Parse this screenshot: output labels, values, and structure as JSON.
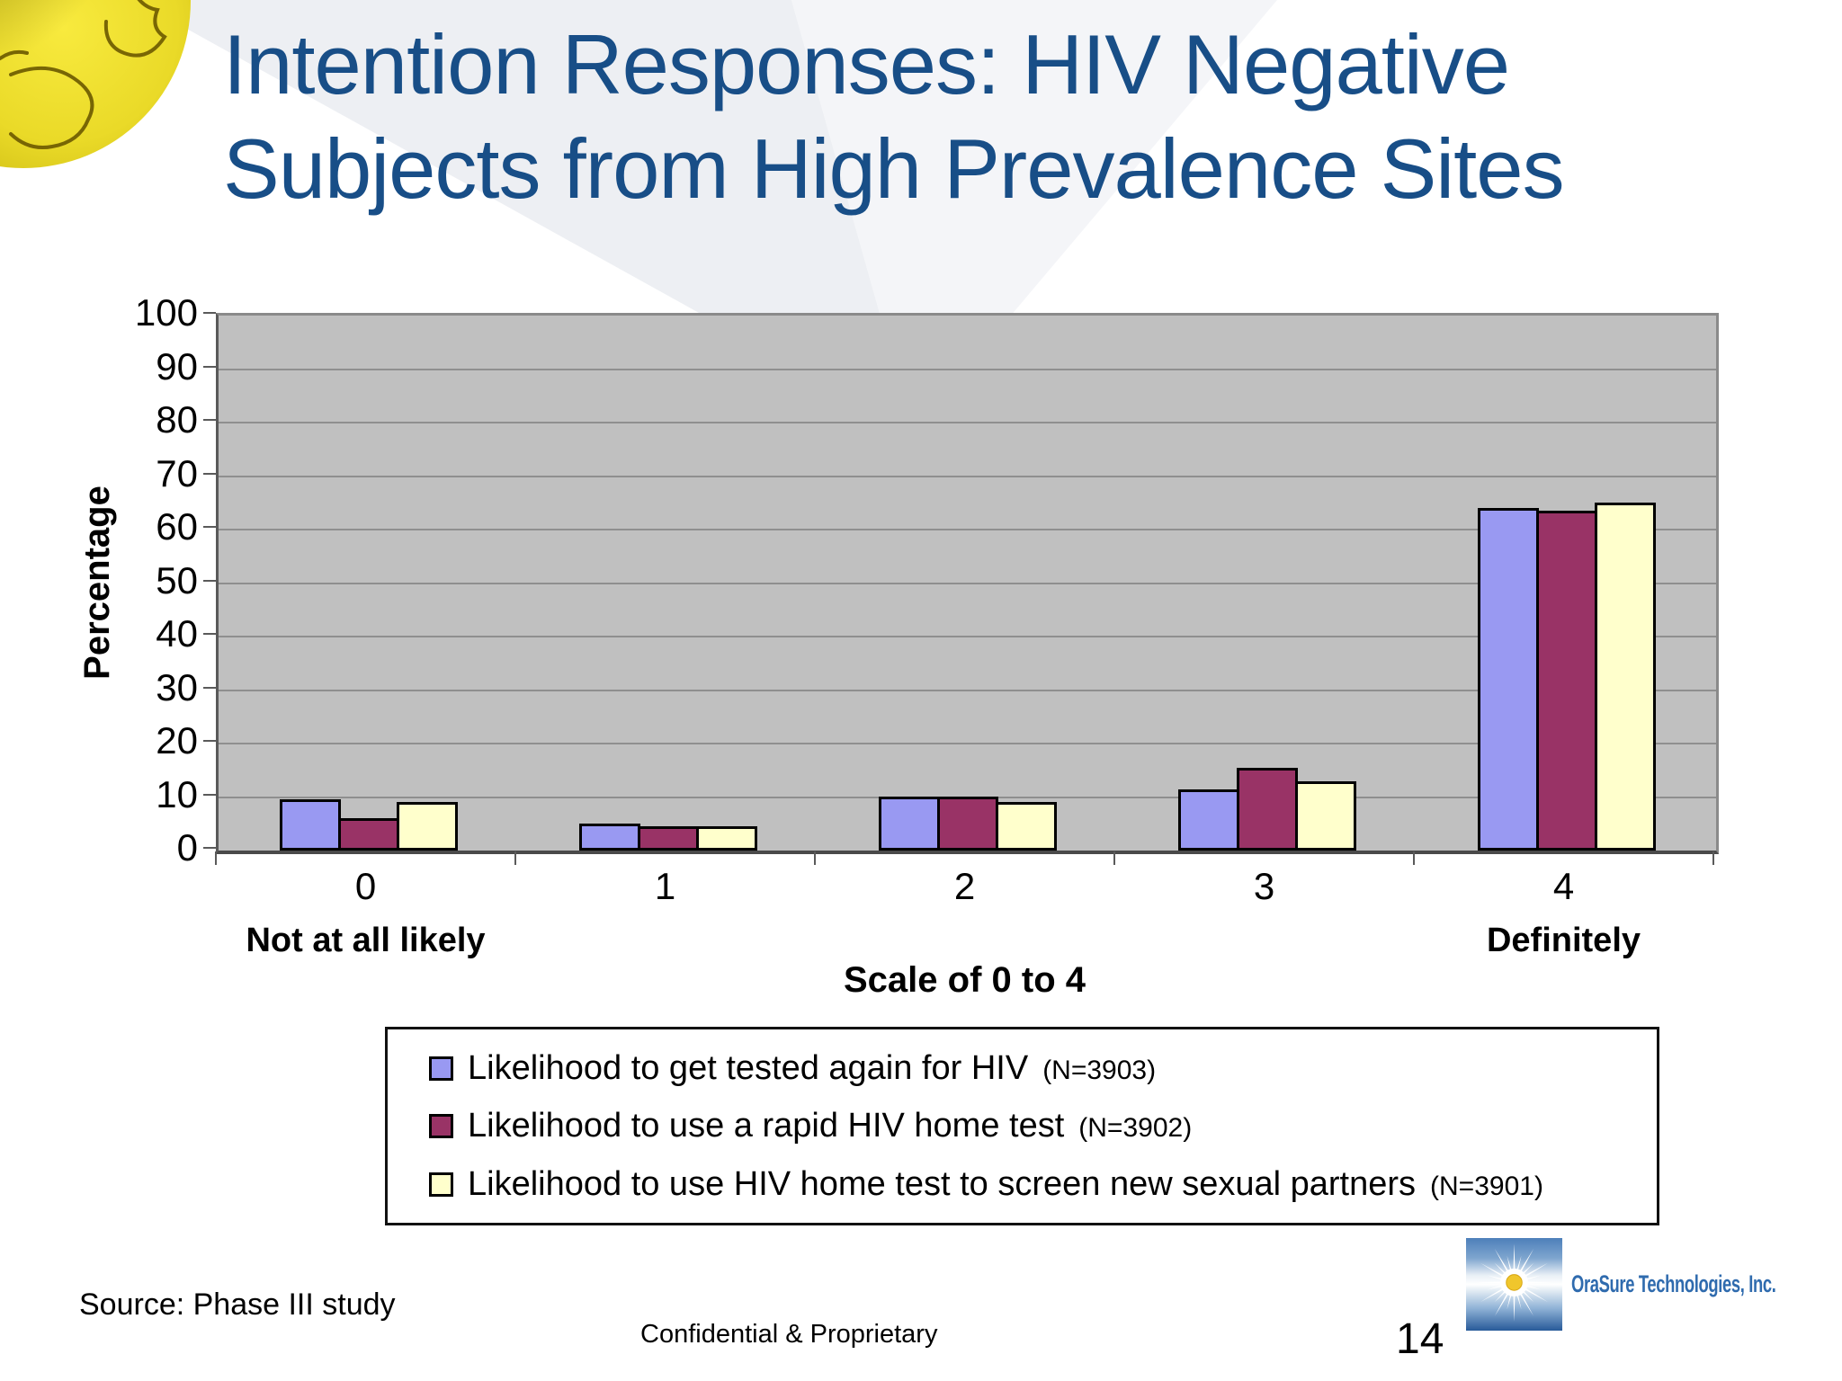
{
  "slide": {
    "title_line1": "Intention Responses: HIV Negative",
    "title_line2": "Subjects from High Prevalence Sites",
    "source": "Source: Phase III study",
    "footer": "Confidential & Proprietary",
    "page_number": "14",
    "logo_text": "OraSure Technologies, Inc.",
    "title_color": "#184E87",
    "logo_text_color": "#2F6BAE"
  },
  "chart_data": {
    "type": "bar",
    "title": "",
    "categories": [
      "0",
      "1",
      "2",
      "3",
      "4"
    ],
    "category_captions": [
      {
        "category": "0",
        "caption": "Not at all likely"
      },
      {
        "category": "4",
        "caption": "Definitely"
      }
    ],
    "xlabel": "Scale of 0 to 4",
    "ylabel": "Percentage",
    "ylim": [
      0,
      100
    ],
    "ytick_step": 10,
    "grid": true,
    "plot_bg_color": "#C0C0C0",
    "legend_position": "bottom",
    "series": [
      {
        "name": "Likelihood to get tested again for HIV",
        "n_label": "(N=3903)",
        "color": "#9999F2",
        "values": [
          9.5,
          5,
          10,
          11.5,
          64
        ]
      },
      {
        "name": "Likelihood to use a rapid HIV home test",
        "n_label": "(N=3902)",
        "color": "#993366",
        "values": [
          6,
          4.5,
          10,
          15.5,
          63.5
        ]
      },
      {
        "name": "Likelihood to use HIV home test to screen new sexual partners",
        "n_label": "(N=3901)",
        "color": "#FFFFCC",
        "values": [
          9,
          4.5,
          9,
          13,
          65
        ]
      }
    ]
  }
}
